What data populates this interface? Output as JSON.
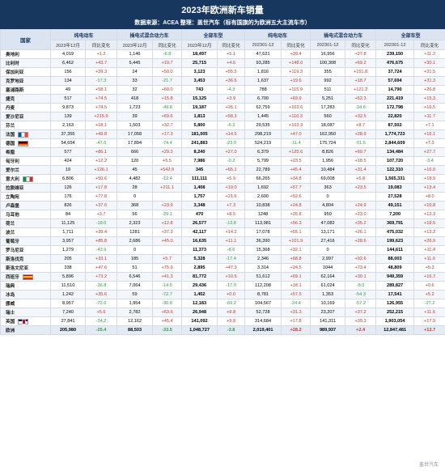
{
  "header": {
    "title": "2023年欧洲新车销量",
    "subtitle": "数据来源：ACEA 整理：盖世汽车（标有国旗的为欧洲五大主流车市）"
  },
  "table": {
    "country_header": "国家",
    "groups": [
      "纯电动车",
      "插电式混合动力车",
      "全部车型",
      "纯电动车",
      "插电式混合动力车",
      "全部车型"
    ],
    "sub_headers": [
      "2023年12月",
      "同比变化",
      "2023年12月",
      "同比变化",
      "2023年12月",
      "同比变化",
      "202301-12",
      "同比变化",
      "202301-12",
      "同比变化",
      "202301-12",
      "同比变化"
    ],
    "rows": [
      {
        "country": "奥地利",
        "flag": "",
        "v": [
          "4,019",
          "+1.2",
          "1,146",
          "-6.8",
          "18,497",
          "+5.1",
          "47,621",
          "+39.4",
          "16,956",
          "+27.8",
          "239,150",
          "+11.2"
        ]
      },
      {
        "country": "比利时",
        "flag": "",
        "v": [
          "6,462",
          "+43.7",
          "5,445",
          "+19.7",
          "25,715",
          "+4.6",
          "93,285",
          "+148.0",
          "100,308",
          "+69.2",
          "476,675",
          "+30.1"
        ]
      },
      {
        "country": "保加利亚",
        "flag": "",
        "v": [
          "156",
          "+39.3",
          "24",
          "+50.0",
          "3,123",
          "+55.5",
          "1,816",
          "+119.3",
          "355",
          "+151.8",
          "37,724",
          "+31.5"
        ]
      },
      {
        "country": "克罗地亚",
        "flag": "",
        "v": [
          "134",
          "-17.3",
          "33",
          "-21.7",
          "3,453",
          "+36.6",
          "1,637",
          "+19.6",
          "992",
          "+18.7",
          "57,694",
          "+31.3"
        ]
      },
      {
        "country": "塞浦路斯",
        "flag": "",
        "v": [
          "49",
          "+58.1",
          "32",
          "+60.0",
          "743",
          "-4.3",
          "788",
          "+115.9",
          "511",
          "+121.2",
          "14,790",
          "+26.8"
        ]
      },
      {
        "country": "捷克",
        "flag": "",
        "v": [
          "517",
          "+74.5",
          "418",
          "+15.8",
          "15,125",
          "+3.9",
          "6,700",
          "+69.9",
          "5,251",
          "+52.3",
          "221,419",
          "+15.3"
        ]
      },
      {
        "country": "丹麦",
        "flag": "",
        "v": [
          "9,873",
          "+74.5",
          "1,723",
          "-49.8",
          "19,187",
          "+26.1",
          "62,759",
          "+103.6",
          "17,283",
          "-34.6",
          "172,798",
          "+16.5"
        ]
      },
      {
        "country": "爱沙尼亚",
        "flag": "",
        "v": [
          "139",
          "+215.9",
          "39",
          "+69.6",
          "1,813",
          "+58.3",
          "1,445",
          "+110.3",
          "560",
          "+32.5",
          "22,820",
          "+11.7"
        ]
      },
      {
        "country": "芬兰",
        "flag": "",
        "v": [
          "2,163",
          "+18.1",
          "1,503",
          "+32.7",
          "5,800",
          "-6.3",
          "29,535",
          "+103.3",
          "18,087",
          "+8.7",
          "87,502",
          "+7.1"
        ]
      },
      {
        "country": "法国",
        "flag": "fr",
        "v": [
          "37,355",
          "+49.8",
          "17,058",
          "+17.3",
          "181,005",
          "+14.5",
          "298,219",
          "+47.0",
          "162,950",
          "+28.9",
          "1,774,723",
          "+16.1"
        ]
      },
      {
        "country": "德国",
        "flag": "de",
        "v": [
          "54,654",
          "-47.6",
          "17,894",
          "-74.4",
          "241,883",
          "-23.0",
          "524,219",
          "-11.4",
          "175,724",
          "-51.5",
          "2,844,609",
          "+7.3"
        ]
      },
      {
        "country": "希腊",
        "flag": "",
        "v": [
          "577",
          "+86.1",
          "666",
          "+29.3",
          "8,240",
          "+27.0",
          "6,379",
          "+125.6",
          "8,826",
          "+60.7",
          "134,484",
          "+27.7"
        ]
      },
      {
        "country": "匈牙利",
        "flag": "",
        "v": [
          "424",
          "+12.2",
          "120",
          "+5.5",
          "7,986",
          "-0.2",
          "5,799",
          "+23.5",
          "1,956",
          "+18.5",
          "107,720",
          "-3.4"
        ]
      },
      {
        "country": "爱尔兰",
        "flag": "",
        "v": [
          "19",
          "+126.1",
          "45",
          "+542.9",
          "345",
          "+65.1",
          "22,789",
          "+45.4",
          "10,484",
          "+31.4",
          "122,310",
          "+16.0"
        ]
      },
      {
        "country": "意大利",
        "flag": "it",
        "v": [
          "6,806",
          "+50.6",
          "4,482",
          "-12.4",
          "111,111",
          "+5.9",
          "66,265",
          "+34.8",
          "69,008",
          "+6.8",
          "1,565,331",
          "+18.9"
        ]
      },
      {
        "country": "拉脱维亚",
        "flag": "",
        "v": [
          "126",
          "+17.8",
          "28",
          "+211.1",
          "1,408",
          "+19.0",
          "1,692",
          "+57.7",
          "363",
          "+23.5",
          "19,083",
          "+13.4"
        ]
      },
      {
        "country": "立陶宛",
        "flag": "",
        "v": [
          "176",
          "+77.8",
          "0",
          "",
          "1,757",
          "+21.6",
          "2,600",
          "+52.6",
          "0",
          "",
          "27,528",
          "+8.0"
        ]
      },
      {
        "country": "卢森堡",
        "flag": "",
        "v": [
          "826",
          "+37.0",
          "368",
          "+23.9",
          "3,348",
          "+7.3",
          "10,838",
          "+24.8",
          "4,804",
          "+24.9",
          "49,151",
          "+16.8"
        ]
      },
      {
        "country": "马耳他",
        "flag": "",
        "v": [
          "84",
          "+3.7",
          "56",
          "-29.1",
          "470",
          "+8.5",
          "1248",
          "+26.8",
          "950",
          "+23.0",
          "7,200",
          "+12.3"
        ]
      },
      {
        "country": "荷兰",
        "flag": "",
        "v": [
          "11,125",
          "-18.0",
          "2,323",
          "+12.8",
          "26,577",
          "-13.8",
          "113,981",
          "+56.3",
          "47,082",
          "+35.2",
          "369,791",
          "+18.5"
        ]
      },
      {
        "country": "波兰",
        "flag": "",
        "v": [
          "1,711",
          "+39.4",
          "1281",
          "+37.3",
          "42,117",
          "+14.2",
          "17,078",
          "+55.1",
          "13,171",
          "+26.1",
          "475,032",
          "+13.2"
        ]
      },
      {
        "country": "葡萄牙",
        "flag": "",
        "v": [
          "3,957",
          "+85.8",
          "2,686",
          "+45.0",
          "16,635",
          "+11.1",
          "36,390",
          "+101.9",
          "27,416",
          "+28.6",
          "199,623",
          "+26.9"
        ]
      },
      {
        "country": "罗马尼亚",
        "flag": "",
        "v": [
          "1,279",
          "-43.9",
          "0",
          "",
          "11,373",
          "-8.6",
          "15,368",
          "+32.1",
          "0",
          "",
          "144,611",
          "+11.4"
        ]
      },
      {
        "country": "斯洛伐克",
        "flag": "",
        "v": [
          "205",
          "+33.1",
          "185",
          "+5.7",
          "5,328",
          "-17.4",
          "2,346",
          "+68.8",
          "2,997",
          "+92.6",
          "88,003",
          "+11.6"
        ]
      },
      {
        "country": "斯洛文尼亚",
        "flag": "",
        "v": [
          "338",
          "+47.6",
          "51",
          "+75.9",
          "2,895",
          "+47.3",
          "3,314",
          "+24.5",
          "1044",
          "+73.4",
          "48,809",
          "+5.3"
        ]
      },
      {
        "country": "西班牙",
        "flag": "es",
        "v": [
          "5,896",
          "+73.2",
          "6,546",
          "+41.3",
          "81,772",
          "+10.6",
          "51,612",
          "+69.1",
          "62,164",
          "+30.1",
          "949,359",
          "+16.7"
        ]
      },
      {
        "country": "瑞典",
        "flag": "",
        "v": [
          "11,510",
          "-36.8",
          "7,064",
          "-14.5",
          "29,436",
          "-17.0",
          "112,208",
          "+18.1",
          "61,024",
          "-8.0",
          "289,827",
          "+0.6"
        ]
      },
      {
        "country": "冰岛",
        "flag": "",
        "v": [
          "1,242",
          "+35.6",
          "59",
          "-72.7",
          "1,452",
          "+0.0",
          "8,781",
          "+57.5",
          "1,353",
          "-54.3",
          "17,541",
          "+5.2"
        ]
      },
      {
        "country": "挪威",
        "flag": "",
        "v": [
          "8,957",
          "-72.6",
          "1,954",
          "-30.8",
          "12,183",
          "-69.2",
          "104,567",
          "-24.4",
          "10,169",
          "-57.2",
          "126,955",
          "-27.2"
        ]
      },
      {
        "country": "瑞士",
        "flag": "",
        "v": [
          "7,240",
          "+5.6",
          "2,782",
          "+63.6",
          "26,948",
          "+9.8",
          "52,728",
          "+31.3",
          "23,207",
          "+37.2",
          "252,215",
          "+11.6"
        ]
      },
      {
        "country": "英国",
        "flag": "gb",
        "v": [
          "27,841",
          "-34.2",
          "12,162",
          "+45.4",
          "141,092",
          "+9.8",
          "314,684",
          "+17.8",
          "141,311",
          "+39.3",
          "1,903,054",
          "+17.9"
        ]
      }
    ],
    "total": {
      "country": "欧洲",
      "v": [
        "205,980",
        "-25.4",
        "88,503",
        "-33.5",
        "1,048,727",
        "-3.8",
        "2,019,401",
        "+28.2",
        "989,937",
        "+2.4",
        "12,847,481",
        "+13.7"
      ]
    }
  },
  "watermark": "盖世汽车"
}
